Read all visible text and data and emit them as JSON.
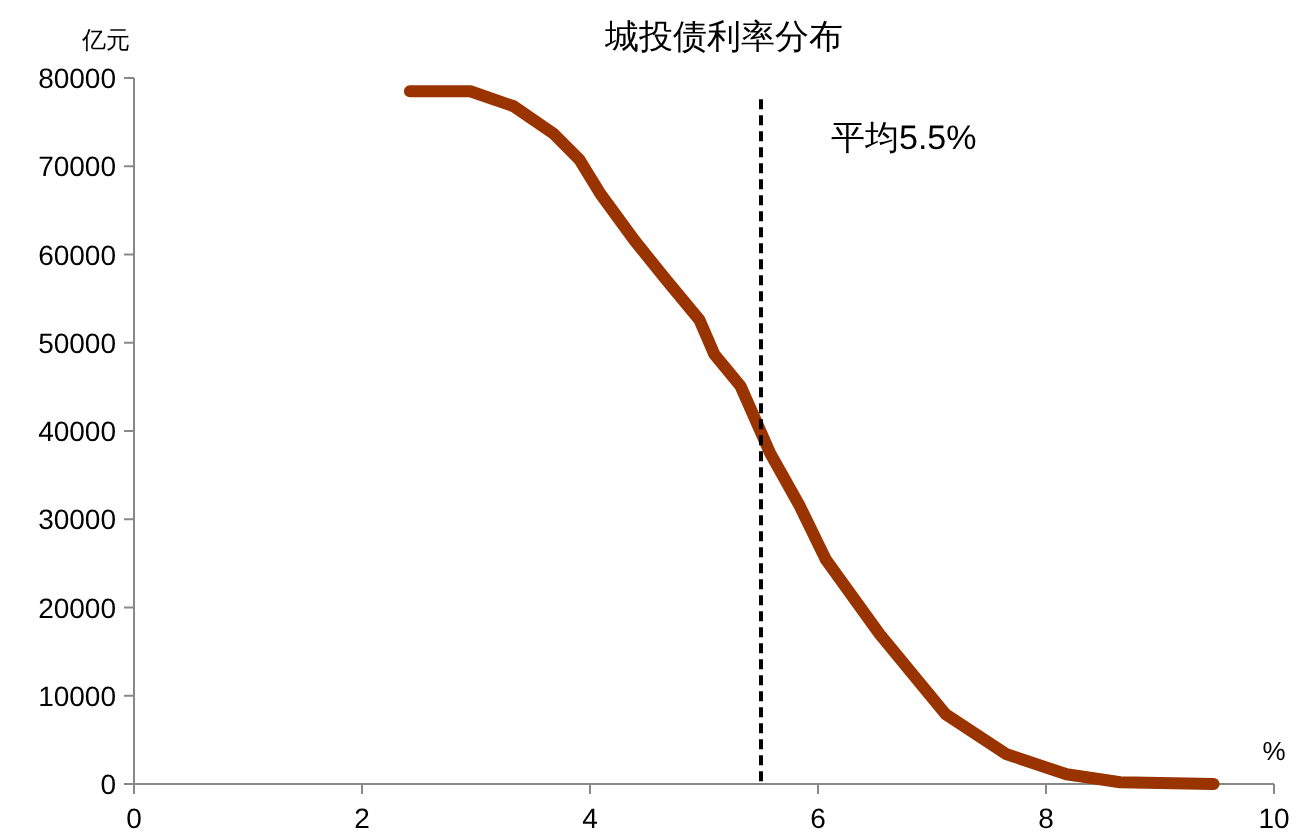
{
  "chart_data": {
    "type": "line",
    "title": "城投债利率分布",
    "ylabel": "亿元",
    "xlabel": "%",
    "series": [
      {
        "color": "#993300",
        "x": [
          2.42,
          2.95,
          3.33,
          3.68,
          3.91,
          4.09,
          4.39,
          4.67,
          4.96,
          5.09,
          5.32,
          5.58,
          5.84,
          6.07,
          6.54,
          7.12,
          7.65,
          8.18,
          8.65,
          9.47
        ],
        "values": [
          78500,
          78500,
          76800,
          73700,
          70700,
          66900,
          61600,
          57100,
          52600,
          48700,
          45100,
          37500,
          31500,
          25400,
          17000,
          7900,
          3400,
          1100,
          200,
          0
        ]
      }
    ],
    "xlim": [
      0,
      10
    ],
    "xticks": [
      0,
      2,
      4,
      6,
      8,
      10
    ],
    "ylim": [
      0,
      80000
    ],
    "yticks": [
      0,
      10000,
      20000,
      30000,
      40000,
      50000,
      60000,
      70000,
      80000
    ],
    "ref_lines": [
      {
        "axis": "x",
        "value": 5.5,
        "label": "平均5.5%",
        "color": "#000000",
        "line_style": "dashed"
      }
    ],
    "grid": false,
    "marker": "none",
    "line_style": "solid"
  }
}
